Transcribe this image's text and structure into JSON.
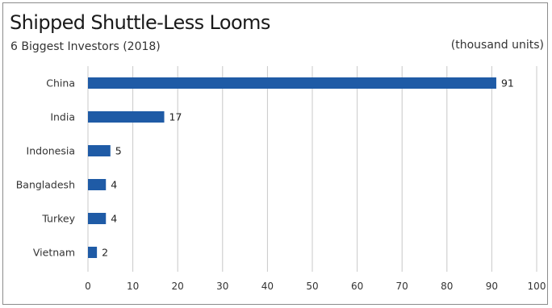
{
  "colors": {
    "bar": "#1f5ba6",
    "gridline": "#c8c8c8",
    "frame": "#8c8c8c",
    "text": "#333333"
  },
  "chart_data": {
    "type": "bar",
    "orientation": "horizontal",
    "title": "Shipped Shuttle-Less Looms",
    "subtitle": "6 Biggest Investors (2018)",
    "unit_label": "(thousand units)",
    "categories": [
      "China",
      "India",
      "Indonesia",
      "Bangladesh",
      "Turkey",
      "Vietnam"
    ],
    "values": [
      91,
      17,
      5,
      4,
      4,
      2
    ],
    "data_labels": [
      "91",
      "17",
      "5",
      "4",
      "4",
      "2"
    ],
    "xlim": [
      0,
      100
    ],
    "xticks": [
      0,
      10,
      20,
      30,
      40,
      50,
      60,
      70,
      80,
      90,
      100
    ],
    "xticklabels": [
      "0",
      "10",
      "20",
      "30",
      "40",
      "50",
      "60",
      "70",
      "80",
      "90",
      "100"
    ],
    "grid": "vertical",
    "legend": "none"
  }
}
